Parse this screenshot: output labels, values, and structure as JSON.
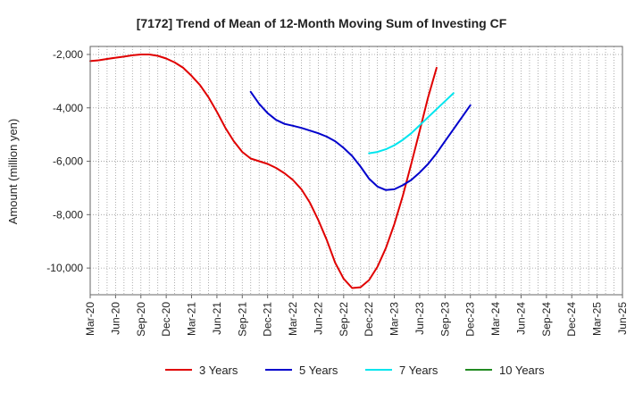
{
  "chart_data": {
    "type": "line",
    "title": "[7172]  Trend of Mean of 12-Month Moving Sum of Investing CF",
    "xlabel": "",
    "ylabel": "Amount (million yen)",
    "ylim": [
      -11000,
      -1700
    ],
    "y_ticks": [
      -2000,
      -4000,
      -6000,
      -8000,
      -10000
    ],
    "y_tick_labels": [
      "-2,000",
      "-4,000",
      "-6,000",
      "-8,000",
      "-10,000"
    ],
    "x_ticks": [
      "Mar-20",
      "Jun-20",
      "Sep-20",
      "Dec-20",
      "Mar-21",
      "Jun-21",
      "Sep-21",
      "Dec-21",
      "Mar-22",
      "Jun-22",
      "Sep-22",
      "Dec-22",
      "Mar-23",
      "Jun-23",
      "Sep-23",
      "Dec-23",
      "Mar-24",
      "Jun-24",
      "Sep-24",
      "Dec-24",
      "Mar-25",
      "Jun-25"
    ],
    "grid": true,
    "legend_position": "bottom",
    "series": [
      {
        "name": "3 Years",
        "color": "#e00000",
        "start_index": 0,
        "values": [
          -2250,
          -2220,
          -2170,
          -2120,
          -2080,
          -2030,
          -2000,
          -2000,
          -2050,
          -2150,
          -2300,
          -2500,
          -2800,
          -3150,
          -3600,
          -4150,
          -4750,
          -5250,
          -5650,
          -5900,
          -6000,
          -6100,
          -6250,
          -6450,
          -6700,
          -7050,
          -7550,
          -8200,
          -8950,
          -9800,
          -10400,
          -10750,
          -10720,
          -10450,
          -9950,
          -9250,
          -8350,
          -7300,
          -6100,
          -4850,
          -3600,
          -2500
        ]
      },
      {
        "name": "5 Years",
        "color": "#0000cc",
        "start_index": 19,
        "values": [
          -3400,
          -3850,
          -4200,
          -4450,
          -4600,
          -4670,
          -4750,
          -4850,
          -4950,
          -5080,
          -5250,
          -5500,
          -5800,
          -6200,
          -6650,
          -6950,
          -7080,
          -7050,
          -6900,
          -6700,
          -6420,
          -6100,
          -5700,
          -5250,
          -4800,
          -4350,
          -3900
        ]
      },
      {
        "name": "7 Years",
        "color": "#00e5ee",
        "start_index": 33,
        "values": [
          -5700,
          -5650,
          -5550,
          -5400,
          -5200,
          -4950,
          -4650,
          -4350,
          -4050,
          -3750,
          -3450
        ]
      },
      {
        "name": "10 Years",
        "color": "#228b22",
        "start_index": 0,
        "values": []
      }
    ]
  }
}
